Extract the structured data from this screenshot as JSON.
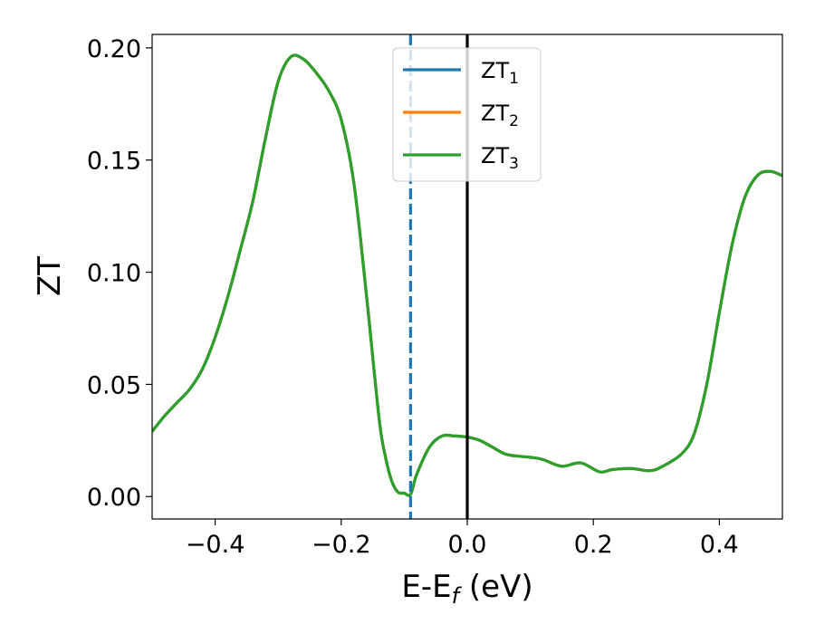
{
  "chart_data": {
    "type": "line",
    "xlabel_main": "E-E",
    "xlabel_sub": "f",
    "xlabel_unit": " (eV)",
    "ylabel": "ZT",
    "xlim": [
      -0.5,
      0.5
    ],
    "ylim": [
      -0.01,
      0.206
    ],
    "xticks": [
      -0.4,
      -0.2,
      0.0,
      0.2,
      0.4
    ],
    "xtick_labels": [
      "−0.4",
      "−0.2",
      "0.0",
      "0.2",
      "0.4"
    ],
    "yticks": [
      0.0,
      0.05,
      0.1,
      0.15,
      0.2
    ],
    "ytick_labels": [
      "0.00",
      "0.05",
      "0.10",
      "0.15",
      "0.20"
    ],
    "grid": false,
    "legend_position": "top-center",
    "series": [
      {
        "name_main": "ZT",
        "name_sub": "1",
        "color": "#1f77b4"
      },
      {
        "name_main": "ZT",
        "name_sub": "2",
        "color": "#ff7f0e"
      },
      {
        "name_main": "ZT",
        "name_sub": "3",
        "color": "#2ca02c"
      }
    ],
    "curve": {
      "x": [
        -0.5,
        -0.48,
        -0.46,
        -0.44,
        -0.42,
        -0.4,
        -0.38,
        -0.36,
        -0.34,
        -0.32,
        -0.3,
        -0.28,
        -0.26,
        -0.24,
        -0.22,
        -0.2,
        -0.18,
        -0.16,
        -0.14,
        -0.13,
        -0.12,
        -0.11,
        -0.1,
        -0.09,
        -0.08,
        -0.06,
        -0.04,
        -0.02,
        0.0,
        0.02,
        0.04,
        0.06,
        0.08,
        0.1,
        0.12,
        0.15,
        0.18,
        0.21,
        0.23,
        0.26,
        0.29,
        0.31,
        0.34,
        0.36,
        0.38,
        0.4,
        0.42,
        0.44,
        0.46,
        0.48,
        0.5
      ],
      "y": [
        0.029,
        0.036,
        0.042,
        0.048,
        0.057,
        0.071,
        0.089,
        0.11,
        0.132,
        0.16,
        0.185,
        0.196,
        0.195,
        0.189,
        0.181,
        0.168,
        0.14,
        0.09,
        0.035,
        0.018,
        0.007,
        0.002,
        0.0015,
        0.001,
        0.01,
        0.022,
        0.027,
        0.027,
        0.0265,
        0.025,
        0.022,
        0.019,
        0.018,
        0.0175,
        0.0165,
        0.0135,
        0.015,
        0.011,
        0.012,
        0.0125,
        0.0115,
        0.0135,
        0.019,
        0.028,
        0.05,
        0.082,
        0.112,
        0.133,
        0.143,
        0.145,
        0.143
      ]
    },
    "vlines": [
      {
        "x": -0.09,
        "style": "dashed",
        "color": "#1f77b4"
      },
      {
        "x": 0.0,
        "style": "solid",
        "color": "#000000"
      }
    ]
  }
}
